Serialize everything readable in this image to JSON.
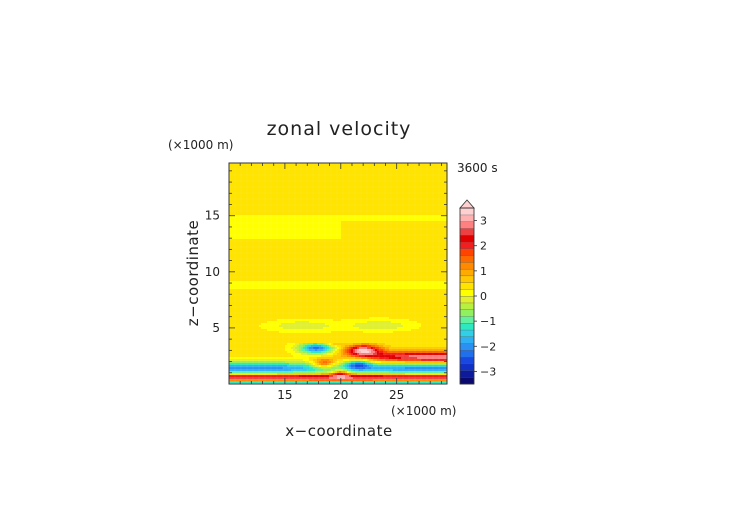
{
  "chart_data": {
    "type": "heatmap",
    "title": "zonal velocity",
    "time_label": "3600 s",
    "xlabel": "x−coordinate",
    "ylabel": "z−coordinate",
    "x_unit": "(×1000 m)",
    "y_unit": "(×1000 m)",
    "xlim": [
      10,
      29.5
    ],
    "ylim": [
      0,
      19.7
    ],
    "x_ticks": [
      15,
      20,
      25
    ],
    "y_ticks": [
      5,
      10,
      15
    ],
    "colorbar": {
      "levels": [
        -3.5,
        -3.25,
        -3.0,
        -2.75,
        -2.5,
        -2.25,
        -2.0,
        -1.75,
        -1.5,
        -1.25,
        -1.0,
        -0.75,
        -0.5,
        -0.25,
        0.0,
        0.25,
        0.5,
        0.75,
        1.0,
        1.25,
        1.5,
        1.75,
        2.0,
        2.25,
        2.5,
        2.75,
        3.0,
        3.25,
        3.5
      ],
      "tick_values": [
        -3,
        -2,
        -1,
        0,
        1,
        2,
        3
      ],
      "tick_labels": [
        "−3",
        "−2",
        "−1",
        "0",
        "1",
        "2",
        "3"
      ],
      "extend": "max",
      "colors": [
        "#0a0a6e",
        "#0d1a9a",
        "#1030c8",
        "#1848e0",
        "#2070ee",
        "#2a90f2",
        "#30b0f4",
        "#30d0e8",
        "#2ee8c0",
        "#60f0a0",
        "#90f060",
        "#b8f040",
        "#e0f030",
        "#ffff00",
        "#ffe400",
        "#ffc800",
        "#ffaa00",
        "#ff8a00",
        "#ff6a00",
        "#ff4400",
        "#f51e1e",
        "#e00000",
        "#ee4040",
        "#ff8080",
        "#ffb0b0",
        "#ffd0d0"
      ]
    },
    "bands_upper": [
      {
        "z_range": [
          0.5,
          2.0
        ],
        "value": -1.8
      },
      {
        "z_range": [
          2.0,
          3.6
        ],
        "value": 0.1
      },
      {
        "z_range": [
          3.6,
          8.5
        ],
        "value": 0.15
      },
      {
        "z_range": [
          8.5,
          9.2
        ],
        "value": -0.05
      },
      {
        "z_range": [
          9.2,
          13.0
        ],
        "value": 0.15
      },
      {
        "z_range": [
          13.0,
          15.0
        ],
        "value": -0.05
      },
      {
        "z_range": [
          15.0,
          19.7
        ],
        "value": 0.1
      }
    ]
  }
}
